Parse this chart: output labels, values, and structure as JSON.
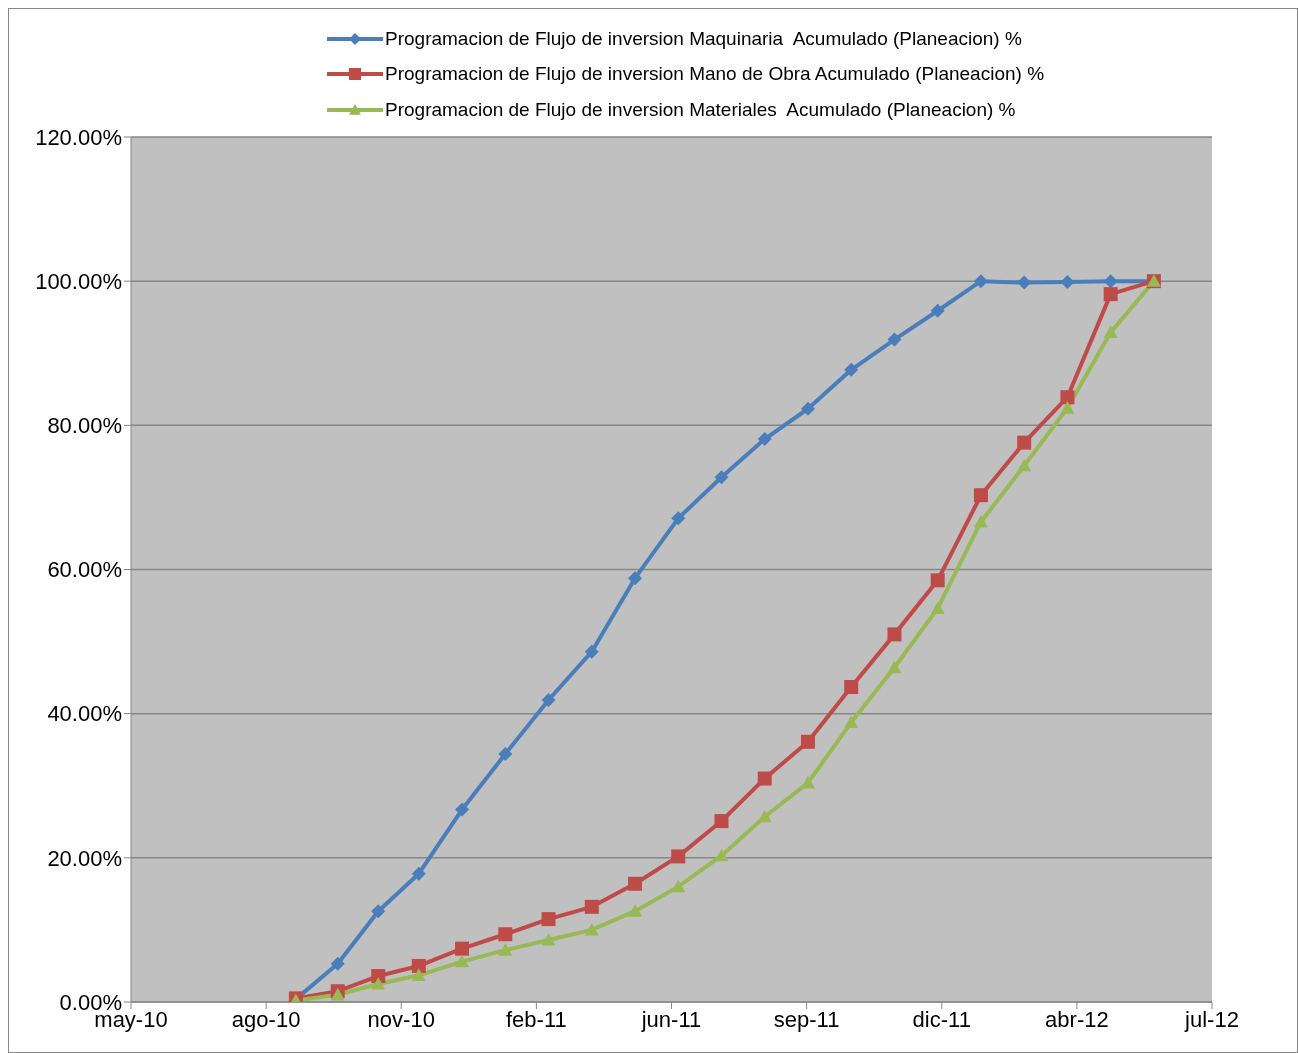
{
  "chart_data": {
    "type": "line",
    "x": [
      "2010-09-02",
      "2010-10-03",
      "2010-11-02",
      "2010-12-02",
      "2011-01-03",
      "2011-02-04",
      "2011-03-08",
      "2011-04-09",
      "2011-05-11",
      "2011-06-12",
      "2011-07-14",
      "2011-08-15",
      "2011-09-16",
      "2011-10-18",
      "2011-11-19",
      "2011-12-21",
      "2012-01-22",
      "2012-02-23",
      "2012-03-26",
      "2012-04-27",
      "2012-05-29"
    ],
    "series": [
      {
        "name": "Programacion de Flujo de inversion Maquinaria  Acumulado (Planeacion) %",
        "color": "#4a7ebb",
        "marker": "diamond",
        "values": [
          0.4,
          5.3,
          12.6,
          17.8,
          26.7,
          34.4,
          41.9,
          48.6,
          58.8,
          67.1,
          72.8,
          78.1,
          82.3,
          87.7,
          91.9,
          95.9,
          100,
          99.8,
          99.9,
          100,
          100
        ]
      },
      {
        "name": "Programacion de Flujo de inversion Mano de Obra Acumulado (Planeacion) %",
        "color": "#be4b48",
        "marker": "square",
        "values": [
          0.5,
          1.5,
          3.6,
          5.0,
          7.4,
          9.4,
          11.5,
          13.2,
          16.4,
          20.2,
          25.1,
          31.0,
          36.1,
          43.7,
          51.0,
          58.5,
          70.3,
          77.6,
          83.9,
          98.2,
          100
        ]
      },
      {
        "name": "Programacion de Flujo de inversion Materiales  Acumulado (Planeacion) %",
        "color": "#98b954",
        "marker": "triangle",
        "values": [
          0.2,
          1.0,
          2.5,
          3.7,
          5.6,
          7.2,
          8.6,
          10.0,
          12.6,
          16.0,
          20.3,
          25.7,
          30.4,
          38.8,
          46.4,
          54.6,
          66.6,
          74.4,
          82.4,
          92.9,
          100
        ]
      }
    ],
    "xlim": [
      "2010-05-03",
      "2012-07-11"
    ],
    "xticks": [
      {
        "value": "2010-05-03",
        "label": "may-10"
      },
      {
        "value": "2010-08-11",
        "label": "ago-10"
      },
      {
        "value": "2010-11-19",
        "label": "nov-10"
      },
      {
        "value": "2011-02-27",
        "label": "feb-11"
      },
      {
        "value": "2011-06-07",
        "label": "jun-11"
      },
      {
        "value": "2011-09-15",
        "label": "sep-11"
      },
      {
        "value": "2011-12-24",
        "label": "dic-11"
      },
      {
        "value": "2012-04-02",
        "label": "abr-12"
      },
      {
        "value": "2012-07-11",
        "label": "jul-12"
      }
    ],
    "ylim": [
      0,
      120
    ],
    "yticks": [
      {
        "value": 0,
        "label": "0.00%"
      },
      {
        "value": 20,
        "label": "20.00%"
      },
      {
        "value": 40,
        "label": "40.00%"
      },
      {
        "value": 60,
        "label": "60.00%"
      },
      {
        "value": 80,
        "label": "80.00%"
      },
      {
        "value": 100,
        "label": "100.00%"
      },
      {
        "value": 120,
        "label": "120.00%"
      }
    ],
    "grid": "y",
    "legend": "top",
    "line_style": "solid"
  }
}
